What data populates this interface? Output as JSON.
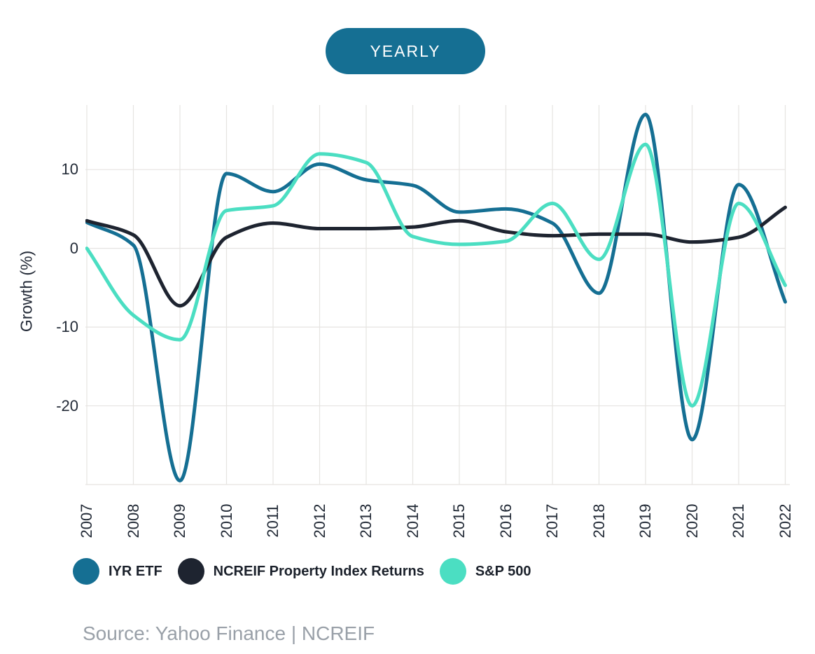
{
  "toolbar": {
    "period_button_label": "YEARLY",
    "period_button_color": "#156f93"
  },
  "chart_data": {
    "type": "line",
    "title": "",
    "xlabel": "",
    "ylabel": "Growth (%)",
    "x": [
      2007,
      2008,
      2009,
      2010,
      2011,
      2012,
      2013,
      2014,
      2015,
      2016,
      2017,
      2018,
      2019,
      2020,
      2021,
      2022
    ],
    "series": [
      {
        "name": "IYR ETF",
        "color": "#156f93",
        "values": [
          3.3,
          0.4,
          -29.5,
          9.5,
          7.2,
          10.7,
          8.7,
          8.0,
          4.6,
          5.0,
          3.2,
          -5.7,
          17.0,
          -24.3,
          8.1,
          -6.8
        ]
      },
      {
        "name": "NCREIF Property Index Returns",
        "color": "#1e2430",
        "values": [
          3.5,
          1.7,
          -7.3,
          1.4,
          3.2,
          2.5,
          2.5,
          2.7,
          3.5,
          2.1,
          1.6,
          1.8,
          1.8,
          0.8,
          1.4,
          5.2
        ]
      },
      {
        "name": "S&P 500",
        "color": "#4bdec2",
        "values": [
          0.0,
          -8.5,
          -11.6,
          4.8,
          5.4,
          12.0,
          10.9,
          1.5,
          0.5,
          0.9,
          5.7,
          -1.4,
          13.2,
          -20.0,
          5.7,
          -4.7
        ]
      }
    ],
    "y_ticks": [
      10,
      0,
      -10,
      -20
    ],
    "ylim": [
      -30,
      18.2
    ],
    "grid": true,
    "gridline_color": "#e6e4e1",
    "curve": "monotone",
    "legend_position": "bottom"
  },
  "source": {
    "text": "Source: Yahoo Finance | NCREIF"
  }
}
